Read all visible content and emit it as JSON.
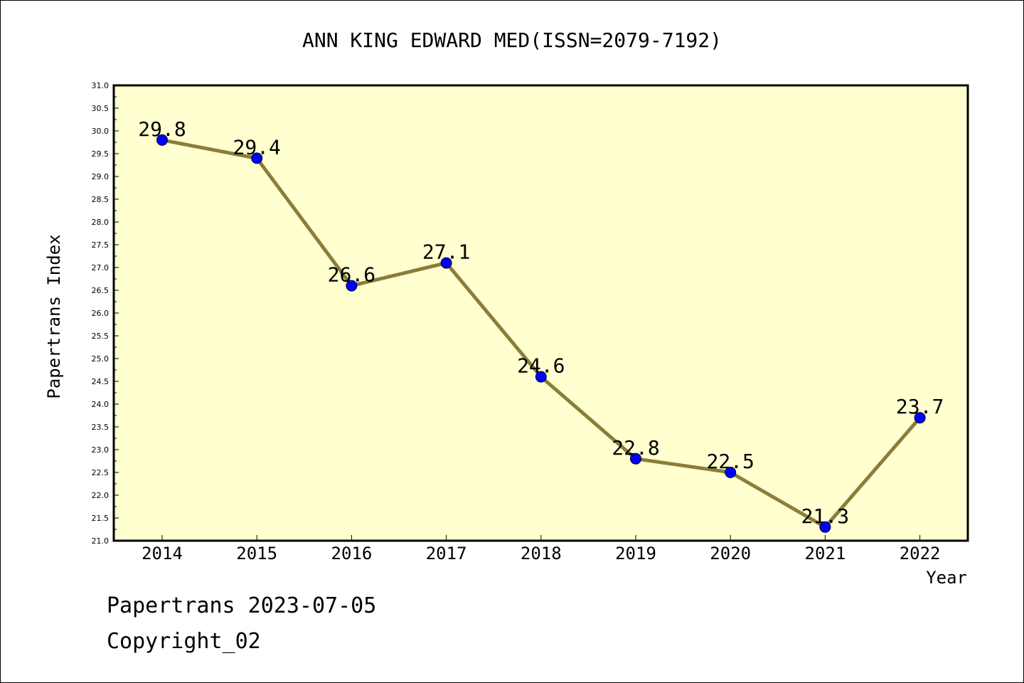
{
  "chart_data": {
    "type": "line",
    "title": "ANN KING EDWARD MED(ISSN=2079-7192)",
    "xlabel": "Year",
    "ylabel": "Papertrans Index",
    "categories": [
      "2014",
      "2015",
      "2016",
      "2017",
      "2018",
      "2019",
      "2020",
      "2021",
      "2022"
    ],
    "series": [
      {
        "values": [
          29.8,
          29.4,
          26.6,
          27.1,
          24.6,
          22.8,
          22.5,
          21.3,
          23.7
        ]
      }
    ],
    "data_labels": [
      "29.8",
      "29.4",
      "26.6",
      "27.1",
      "24.6",
      "22.8",
      "22.5",
      "21.3",
      "23.7"
    ],
    "ylim": [
      21.0,
      31.0
    ],
    "y_ticks": [
      "21.0",
      "21.5",
      "22.0",
      "22.5",
      "23.0",
      "23.5",
      "24.0",
      "24.5",
      "25.0",
      "25.5",
      "26.0",
      "26.5",
      "27.0",
      "27.5",
      "28.0",
      "28.5",
      "29.0",
      "29.5",
      "30.0",
      "30.5",
      "31.0"
    ],
    "grid": false,
    "colors": {
      "plot_background": "#ffffd0",
      "line": "#8b7d3a",
      "marker": "#0000ff"
    }
  },
  "footer": {
    "generated": "Papertrans 2023-07-05",
    "copyright": "Copyright_02"
  }
}
